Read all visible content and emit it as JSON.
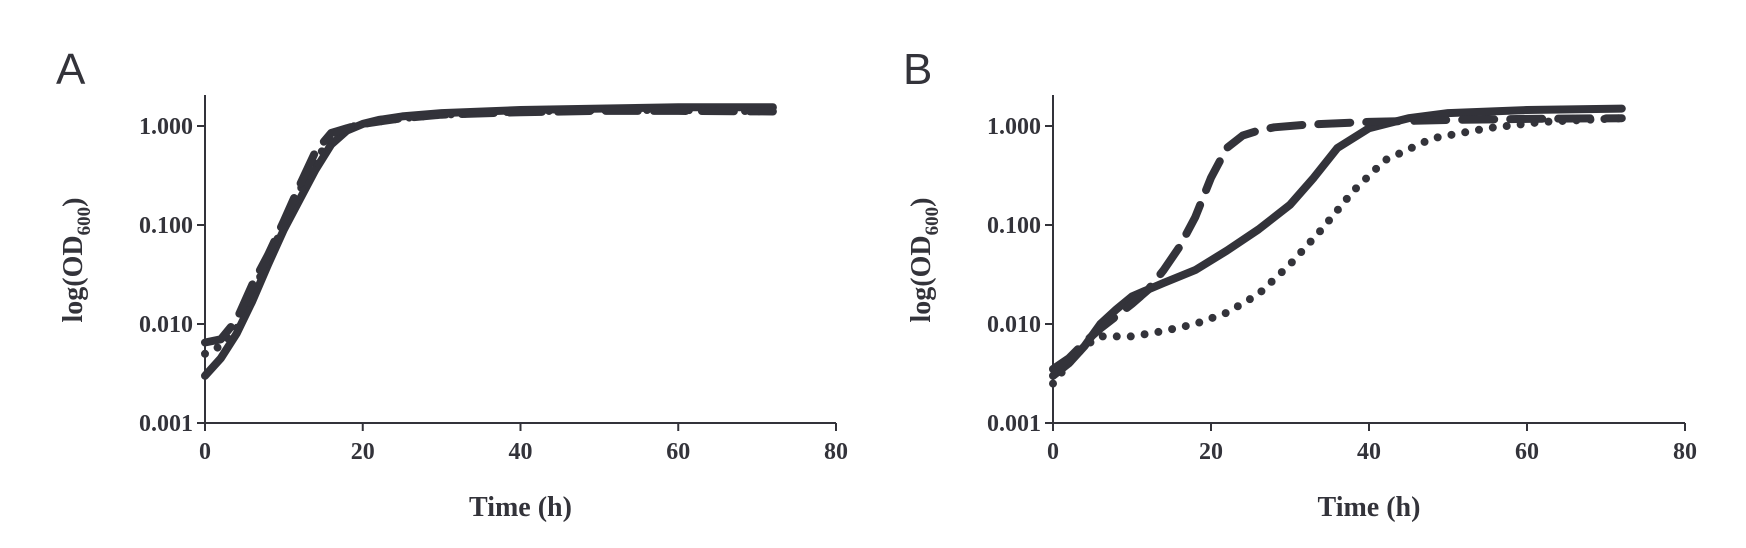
{
  "colors": {
    "ink": "#33333a",
    "background": "#ffffff"
  },
  "chart_data": [
    {
      "type": "line",
      "panel_label": "A",
      "xlabel": "Time (h)",
      "ylabel_main": "log(OD",
      "ylabel_sub": "600",
      "ylabel_close": ")",
      "yscale": "log",
      "xlim": [
        0,
        80
      ],
      "ylim": [
        0.001,
        2
      ],
      "x_ticks": [
        0,
        20,
        40,
        60,
        80
      ],
      "x_tick_labels": [
        "0",
        "20",
        "40",
        "60",
        "80"
      ],
      "y_ticks": [
        0.001,
        0.01,
        0.1,
        1
      ],
      "y_tick_labels": [
        "0.001",
        "0.010",
        "0.100",
        "1.000"
      ],
      "grid": false,
      "series": [
        {
          "style": "solid",
          "x": [
            0,
            2,
            4,
            6,
            8,
            10,
            12,
            14,
            16,
            18,
            20,
            22,
            25,
            30,
            40,
            50,
            60,
            72
          ],
          "y": [
            0.003,
            0.0045,
            0.008,
            0.017,
            0.04,
            0.09,
            0.18,
            0.36,
            0.65,
            0.9,
            1.05,
            1.15,
            1.25,
            1.35,
            1.45,
            1.5,
            1.55,
            1.55
          ]
        },
        {
          "style": "dotted",
          "x": [
            0,
            2,
            4,
            6,
            8,
            10,
            12,
            14,
            16,
            18,
            20,
            25,
            30,
            40,
            50,
            60,
            72
          ],
          "y": [
            0.005,
            0.006,
            0.009,
            0.02,
            0.045,
            0.1,
            0.22,
            0.45,
            0.75,
            0.95,
            1.05,
            1.2,
            1.3,
            1.4,
            1.45,
            1.45,
            1.4
          ]
        },
        {
          "style": "dashed",
          "x": [
            0,
            2,
            4,
            6,
            8,
            10,
            12,
            14,
            16,
            18,
            20,
            25,
            30,
            40,
            50,
            60,
            72
          ],
          "y": [
            0.0065,
            0.007,
            0.011,
            0.025,
            0.05,
            0.11,
            0.25,
            0.55,
            0.85,
            0.95,
            1.05,
            1.2,
            1.3,
            1.38,
            1.42,
            1.42,
            1.4
          ]
        }
      ]
    },
    {
      "type": "line",
      "panel_label": "B",
      "xlabel": "Time (h)",
      "ylabel_main": "log(OD",
      "ylabel_sub": "600",
      "ylabel_close": ")",
      "yscale": "log",
      "xlim": [
        0,
        80
      ],
      "ylim": [
        0.001,
        2
      ],
      "x_ticks": [
        0,
        20,
        40,
        60,
        80
      ],
      "x_tick_labels": [
        "0",
        "20",
        "40",
        "60",
        "80"
      ],
      "y_ticks": [
        0.001,
        0.01,
        0.1,
        1
      ],
      "y_tick_labels": [
        "0.001",
        "0.010",
        "0.100",
        "1.000"
      ],
      "grid": false,
      "series": [
        {
          "style": "solid",
          "x": [
            0,
            2,
            4,
            6,
            8,
            10,
            14,
            18,
            22,
            26,
            30,
            33,
            36,
            40,
            45,
            50,
            60,
            72
          ],
          "y": [
            0.003,
            0.004,
            0.006,
            0.01,
            0.014,
            0.019,
            0.026,
            0.035,
            0.055,
            0.09,
            0.16,
            0.3,
            0.6,
            0.95,
            1.2,
            1.35,
            1.45,
            1.5
          ]
        },
        {
          "style": "dotted",
          "x": [
            0,
            2,
            4,
            6,
            8,
            10,
            14,
            18,
            22,
            26,
            30,
            34,
            38,
            42,
            48,
            55,
            62,
            72
          ],
          "y": [
            0.0025,
            0.004,
            0.006,
            0.0075,
            0.0075,
            0.0075,
            0.0085,
            0.01,
            0.013,
            0.02,
            0.04,
            0.09,
            0.22,
            0.45,
            0.75,
            0.95,
            1.1,
            1.2
          ]
        },
        {
          "style": "dashed",
          "x": [
            0,
            2,
            4,
            6,
            8,
            10,
            12,
            14,
            16,
            18,
            20,
            22,
            24,
            26,
            28,
            32,
            40,
            50,
            60,
            72
          ],
          "y": [
            0.0035,
            0.0045,
            0.0065,
            0.009,
            0.012,
            0.016,
            0.022,
            0.035,
            0.06,
            0.12,
            0.3,
            0.6,
            0.8,
            0.9,
            0.97,
            1.03,
            1.1,
            1.15,
            1.18,
            1.2
          ]
        }
      ]
    }
  ]
}
